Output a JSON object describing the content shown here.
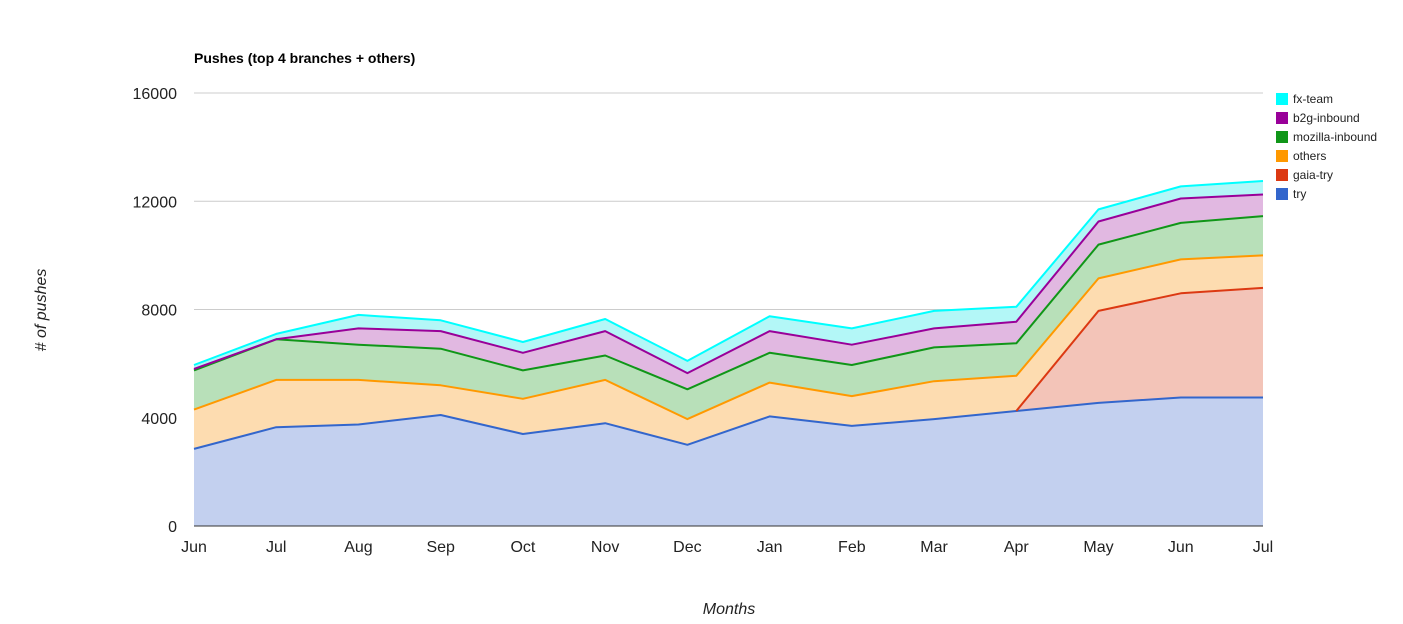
{
  "chart_data": {
    "type": "area",
    "stacked": true,
    "title": "Pushes (top 4 branches + others)",
    "xlabel": "Months",
    "ylabel": "# of pushes",
    "ylim": [
      0,
      16000
    ],
    "yticks": [
      0,
      4000,
      8000,
      12000,
      16000
    ],
    "grid": true,
    "legend_position": "right",
    "categories": [
      "Jun",
      "Jul",
      "Aug",
      "Sep",
      "Oct",
      "Nov",
      "Dec",
      "Jan",
      "Feb",
      "Mar",
      "Apr",
      "May",
      "Jun",
      "Jul"
    ],
    "series": [
      {
        "name": "try",
        "color": "#3366cc",
        "fill": "#c3d0ef",
        "values": [
          2850,
          3650,
          3750,
          4100,
          3400,
          3800,
          3000,
          4050,
          3700,
          3950,
          4250,
          4550,
          4750,
          4750
        ]
      },
      {
        "name": "gaia-try",
        "color": "#dc3912",
        "fill": "#f3c4b8",
        "values": [
          0,
          0,
          0,
          0,
          0,
          0,
          0,
          0,
          0,
          0,
          0,
          3400,
          3850,
          4050
        ]
      },
      {
        "name": "others",
        "color": "#ff9900",
        "fill": "#fddcb0",
        "values": [
          1450,
          1750,
          1650,
          1100,
          1300,
          1600,
          950,
          1250,
          1100,
          1400,
          1300,
          1200,
          1250,
          1200
        ]
      },
      {
        "name": "mozilla-inbound",
        "color": "#109618",
        "fill": "#b8e0b9",
        "values": [
          1450,
          1500,
          1300,
          1350,
          1050,
          900,
          1100,
          1100,
          1150,
          1250,
          1200,
          1250,
          1350,
          1450
        ]
      },
      {
        "name": "b2g-inbound",
        "color": "#990099",
        "fill": "#e1b8e1",
        "values": [
          50,
          0,
          600,
          650,
          650,
          900,
          600,
          800,
          750,
          700,
          800,
          850,
          900,
          800
        ]
      },
      {
        "name": "fx-team",
        "color": "#00ffff",
        "fill": "#b3f7f7",
        "values": [
          150,
          200,
          500,
          400,
          400,
          450,
          450,
          550,
          600,
          650,
          550,
          450,
          450,
          500
        ]
      }
    ]
  }
}
